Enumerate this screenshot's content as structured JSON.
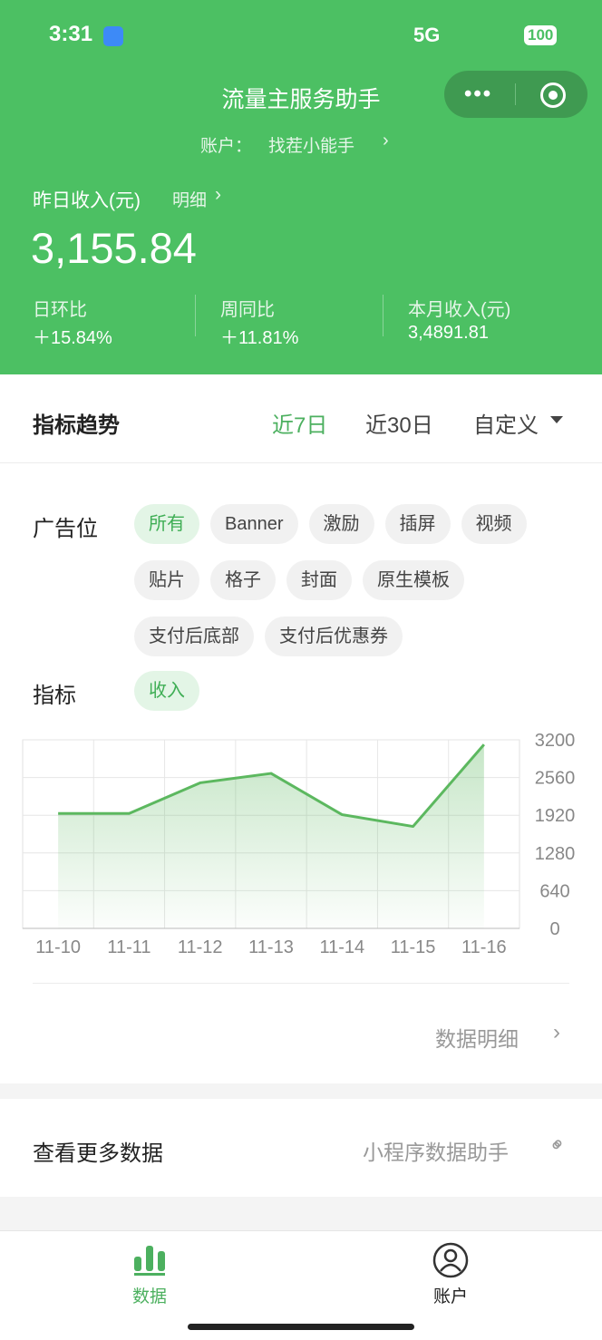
{
  "status_bar": {
    "time": "3:31",
    "network": "5G",
    "battery": "100"
  },
  "header": {
    "title": "流量主服务助手",
    "account_label": "账户：",
    "account_name": "找茬小能手",
    "income_label": "昨日收入(元)",
    "detail_link": "明细",
    "income": "3,155.84",
    "stats": [
      {
        "label": "日环比",
        "value": "＋15.84%"
      },
      {
        "label": "周同比",
        "value": "＋11.81%"
      },
      {
        "label": "本月收入(元)",
        "value": "3,4891.81"
      }
    ]
  },
  "trend": {
    "title": "指标趋势",
    "ranges": [
      "近7日",
      "近30日",
      "自定义"
    ],
    "ad_label": "广告位",
    "ad_slots": [
      "所有",
      "Banner",
      "激励",
      "插屏",
      "视频",
      "贴片",
      "格子",
      "封面",
      "原生模板",
      "支付后底部",
      "支付后优惠券"
    ],
    "metric_label": "指标",
    "metrics": [
      "收入"
    ],
    "detail_link": "数据明细"
  },
  "more": {
    "label": "查看更多数据",
    "link": "小程序数据助手"
  },
  "tab_bar": [
    "数据",
    "账户"
  ],
  "chart_data": {
    "type": "line",
    "categories": [
      "11-10",
      "11-11",
      "11-12",
      "11-13",
      "11-14",
      "11-15",
      "11-16"
    ],
    "values": [
      1950,
      1950,
      2470,
      2630,
      1930,
      1730,
      3120
    ],
    "color": "#5cb85f",
    "ylim": [
      0,
      3200
    ],
    "yticks": [
      0,
      640,
      1280,
      1920,
      2560,
      3200
    ],
    "grid": true
  }
}
